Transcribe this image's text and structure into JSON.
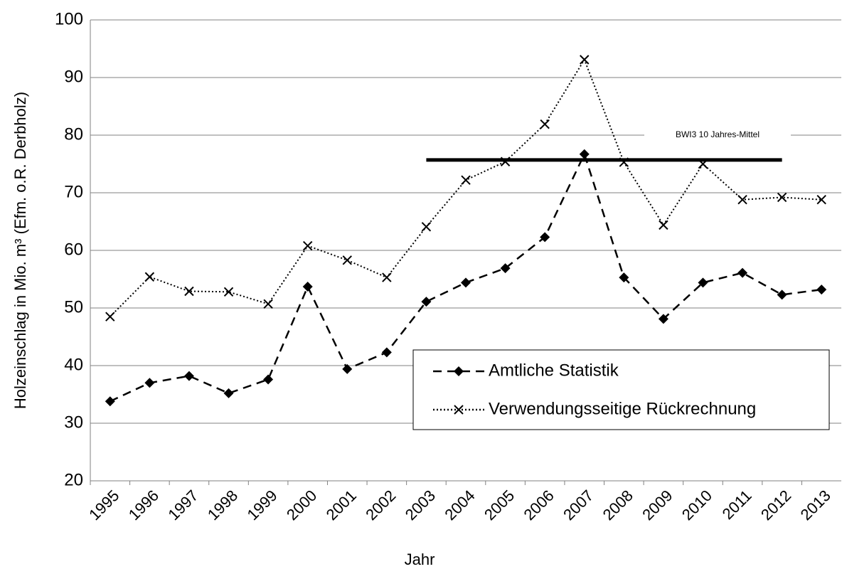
{
  "chart_data": {
    "type": "line",
    "x_label": "Jahr",
    "y_label": "Holzeinschlag in  Mio. m³ (Efm. o.R. Derbholz)",
    "categories": [
      "1995",
      "1996",
      "1997",
      "1998",
      "1999",
      "2000",
      "2001",
      "2002",
      "2003",
      "2004",
      "2005",
      "2006",
      "2007",
      "2008",
      "2009",
      "2010",
      "2011",
      "2012",
      "2013"
    ],
    "series": [
      {
        "name": "Amtliche Statistik",
        "color": "#000000",
        "dash": "dashed",
        "marker": "diamond",
        "values": [
          33.8,
          37.0,
          38.2,
          35.2,
          37.6,
          53.7,
          39.4,
          42.3,
          51.1,
          54.4,
          56.9,
          62.3,
          76.7,
          55.3,
          48.1,
          54.4,
          56.1,
          52.3,
          53.2
        ]
      },
      {
        "name": "Verwendungsseitige Rückrechnung",
        "color": "#000000",
        "dash": "dotted",
        "marker": "x",
        "values": [
          48.5,
          55.4,
          52.9,
          52.8,
          50.7,
          60.8,
          58.3,
          55.3,
          64.1,
          72.2,
          75.4,
          81.9,
          93.1,
          75.3,
          64.4,
          75.0,
          68.8,
          69.2,
          68.8
        ]
      }
    ],
    "reference": {
      "label": "BWI3 10 Jahres-Mittel",
      "value": 75.7,
      "from": "2003",
      "to": "2012"
    },
    "ylim": [
      20,
      100
    ],
    "yticks": [
      20,
      30,
      40,
      50,
      60,
      70,
      80,
      90,
      100
    ],
    "grid": true,
    "legend": "lower right"
  }
}
